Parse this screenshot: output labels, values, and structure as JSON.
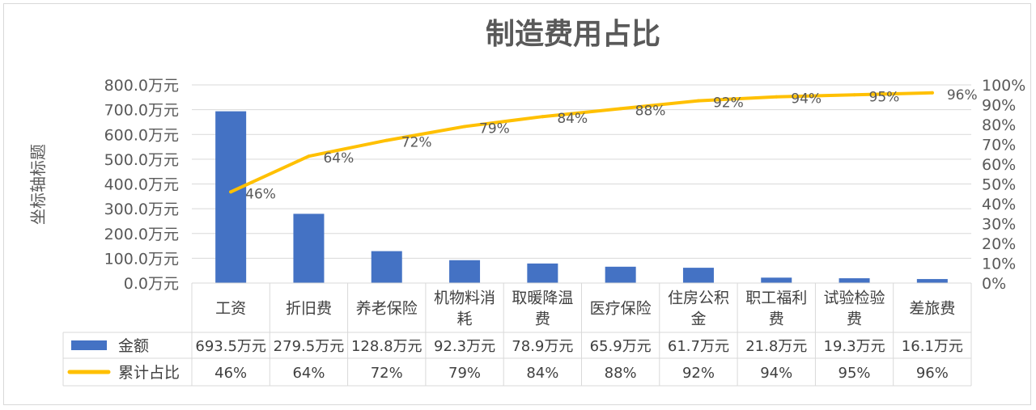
{
  "chart_data": {
    "type": "bar",
    "title": "制造费用占比",
    "ylabel": "坐标轴标题",
    "categories": [
      [
        "工资"
      ],
      [
        "折旧费"
      ],
      [
        "养老保险"
      ],
      [
        "机物料消",
        "耗"
      ],
      [
        "取暖降温",
        "费"
      ],
      [
        "医疗保险"
      ],
      [
        "住房公积",
        "金"
      ],
      [
        "职工福利",
        "费"
      ],
      [
        "试验检验",
        "费"
      ],
      [
        "差旅费"
      ]
    ],
    "ylim": [
      0,
      800
    ],
    "y2lim": [
      0,
      100
    ],
    "y_ticks": [
      "0.0万元",
      "100.0万元",
      "200.0万元",
      "300.0万元",
      "400.0万元",
      "500.0万元",
      "600.0万元",
      "700.0万元",
      "800.0万元"
    ],
    "y2_ticks": [
      "0%",
      "10%",
      "20%",
      "30%",
      "40%",
      "50%",
      "60%",
      "70%",
      "80%",
      "90%",
      "100%"
    ],
    "grid": true,
    "series": [
      {
        "name": "金额",
        "type": "bar",
        "color": "#4472C4",
        "values": [
          693.5,
          279.5,
          128.8,
          92.3,
          78.9,
          65.9,
          61.7,
          21.8,
          19.3,
          16.1
        ],
        "labels": [
          "693.5万元",
          "279.5万元",
          "128.8万元",
          "92.3万元",
          "78.9万元",
          "65.9万元",
          "61.7万元",
          "21.8万元",
          "19.3万元",
          "16.1万元"
        ]
      },
      {
        "name": "累计占比",
        "type": "line",
        "axis": "secondary",
        "color": "#FFC000",
        "values": [
          46,
          64,
          72,
          79,
          84,
          88,
          92,
          94,
          95,
          96
        ],
        "labels": [
          "46%",
          "64%",
          "72%",
          "79%",
          "84%",
          "88%",
          "92%",
          "94%",
          "95%",
          "96%"
        ]
      }
    ]
  }
}
